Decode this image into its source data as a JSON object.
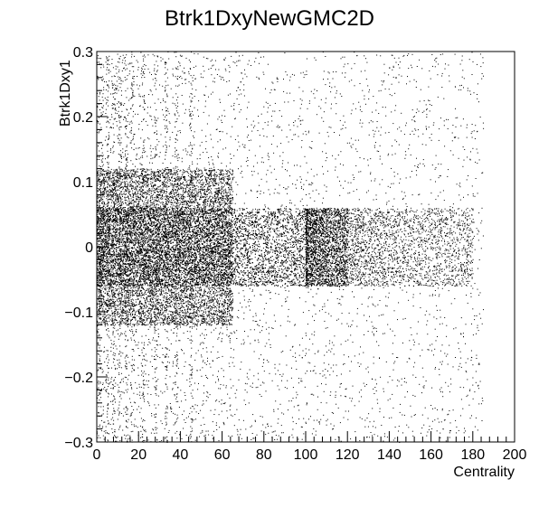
{
  "chart_data": {
    "type": "scatter",
    "title": "Btrk1DxyNewGMC2D",
    "xlabel": "Centrality",
    "ylabel": "Btrk1Dxy1",
    "xlim": [
      0,
      200
    ],
    "ylim": [
      -0.3,
      0.3
    ],
    "x_ticks": [
      0,
      20,
      40,
      60,
      80,
      100,
      120,
      140,
      160,
      180,
      200
    ],
    "x_tick_labels": [
      "0",
      "20",
      "40",
      "60",
      "80",
      "100",
      "120",
      "140",
      "160",
      "180",
      "200"
    ],
    "y_ticks": [
      -0.3,
      -0.2,
      -0.1,
      0,
      0.1,
      0.2,
      0.3
    ],
    "y_tick_labels": [
      "−0.3",
      "−0.2",
      "−0.1",
      "0",
      "0.1",
      "0.2",
      "0.3"
    ],
    "grid": false,
    "legend": "none",
    "marker_color": "#000000",
    "density_description": [
      {
        "x_range": [
          0,
          65
        ],
        "y_range": [
          -0.12,
          0.12
        ],
        "density": "very high"
      },
      {
        "x_range": [
          0,
          120
        ],
        "y_range": [
          -0.06,
          0.06
        ],
        "density": "very high"
      },
      {
        "x_range": [
          120,
          180
        ],
        "y_range": [
          -0.06,
          0.06
        ],
        "density": "medium"
      },
      {
        "x_range": [
          0,
          180
        ],
        "y_range": [
          -0.3,
          0.3
        ],
        "density": "sparse"
      }
    ]
  }
}
